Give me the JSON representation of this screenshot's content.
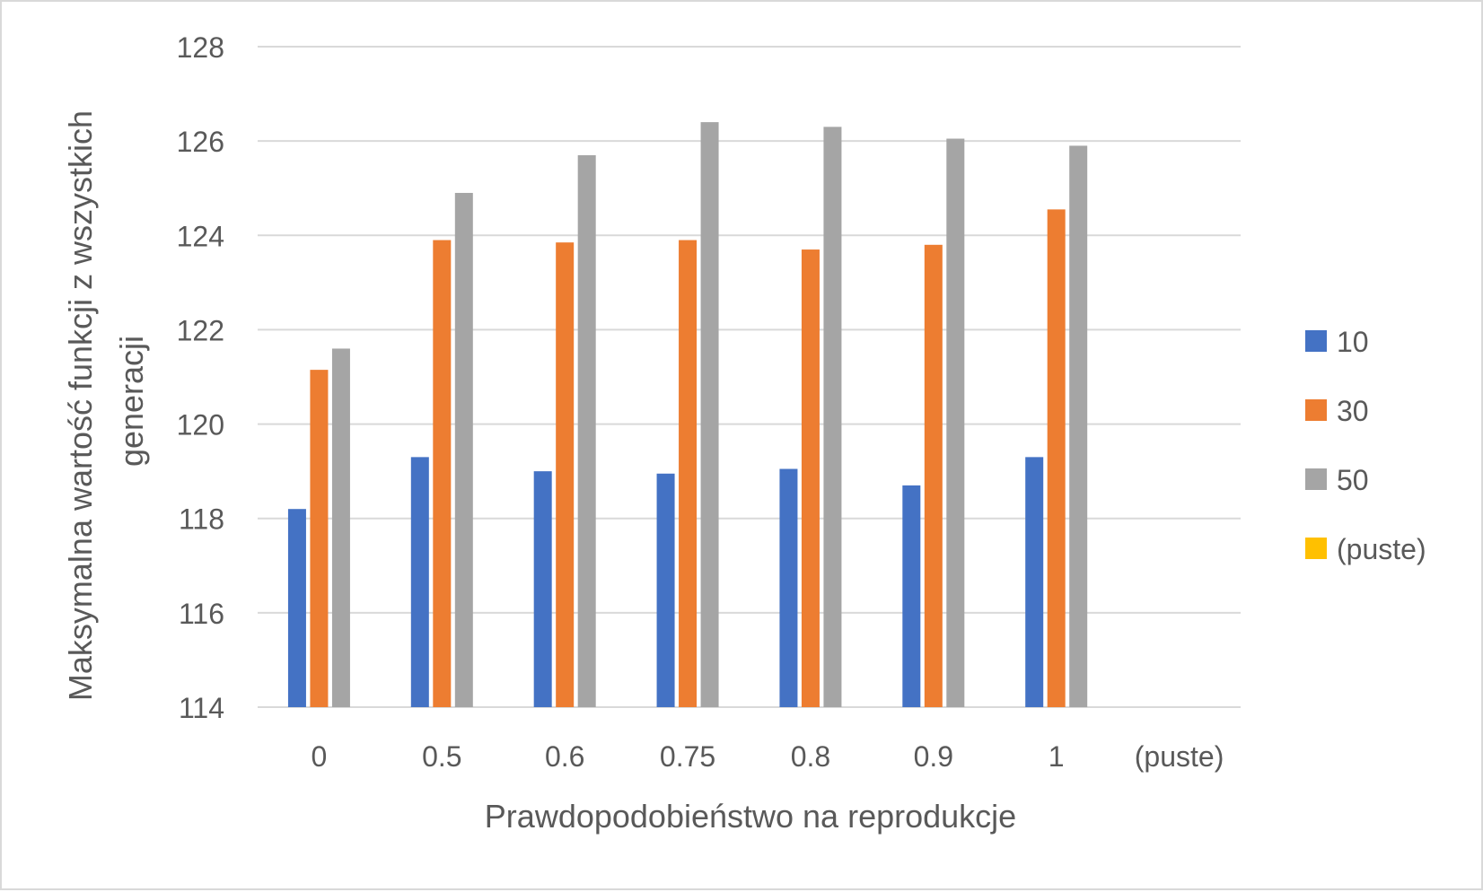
{
  "chart_data": {
    "type": "bar",
    "title": "",
    "xlabel": "Prawdopodobieństwo na reprodukcje",
    "ylabel_lines": [
      "Maksymalna wartość funkcji z wszystkich",
      "generacji"
    ],
    "categories": [
      "0",
      "0.5",
      "0.6",
      "0.75",
      "0.8",
      "0.9",
      "1",
      "(puste)"
    ],
    "ylim": [
      114,
      128
    ],
    "yticks": [
      "114",
      "116",
      "118",
      "120",
      "122",
      "124",
      "126",
      "128"
    ],
    "grid": true,
    "legend_position": "right",
    "series": [
      {
        "name": "10",
        "color": "#4472c4",
        "values": [
          118.2,
          119.3,
          119.0,
          118.95,
          119.05,
          118.7,
          119.3,
          null
        ]
      },
      {
        "name": "30",
        "color": "#ed7d31",
        "values": [
          121.15,
          123.9,
          123.85,
          123.9,
          123.7,
          123.8,
          124.55,
          null
        ]
      },
      {
        "name": "50",
        "color": "#a5a5a5",
        "values": [
          121.6,
          124.9,
          125.7,
          126.4,
          126.3,
          126.05,
          125.9,
          null
        ]
      },
      {
        "name": "(puste)",
        "color": "#ffc000",
        "values": [
          null,
          null,
          null,
          null,
          null,
          null,
          null,
          null
        ]
      }
    ]
  }
}
